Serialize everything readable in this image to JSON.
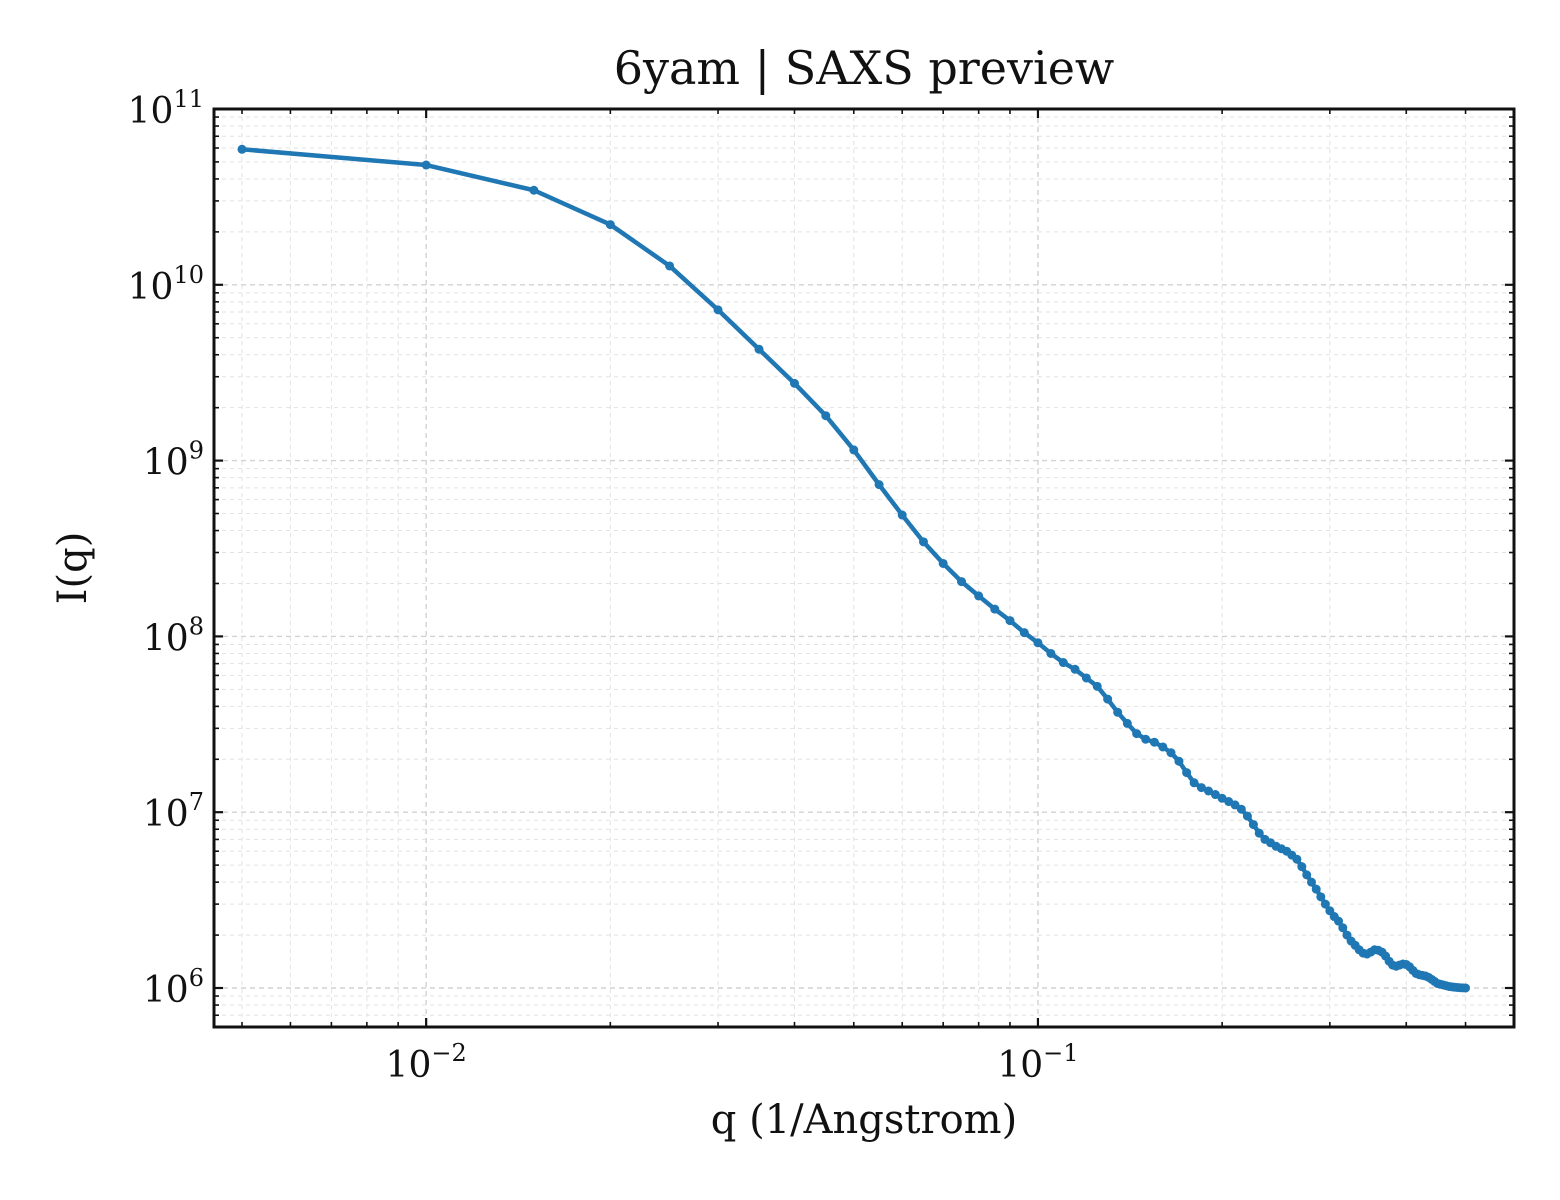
{
  "chart_data": {
    "type": "line",
    "title": "6yam | SAXS preview",
    "xlabel": "q (1/Angstrom)",
    "ylabel": "I(q)",
    "xscale": "log",
    "yscale": "log",
    "xlim": [
      0.0045,
      0.6
    ],
    "ylim": [
      600000,
      100000000000
    ],
    "grid": true,
    "x_ticks": [
      {
        "value": 0.01,
        "base": "10",
        "exp": "−2"
      },
      {
        "value": 0.1,
        "base": "10",
        "exp": "−1"
      }
    ],
    "y_ticks": [
      {
        "value": 1000000,
        "base": "10",
        "exp": "6"
      },
      {
        "value": 10000000,
        "base": "10",
        "exp": "7"
      },
      {
        "value": 100000000,
        "base": "10",
        "exp": "8"
      },
      {
        "value": 1000000000,
        "base": "10",
        "exp": "9"
      },
      {
        "value": 10000000000,
        "base": "10",
        "exp": "10"
      },
      {
        "value": 100000000000,
        "base": "10",
        "exp": "11"
      }
    ],
    "colors": {
      "series": "#1f77b4"
    },
    "series": [
      {
        "x": [
          0.005,
          0.01,
          0.015,
          0.02,
          0.025,
          0.03,
          0.035,
          0.04,
          0.045,
          0.05,
          0.055,
          0.06,
          0.065,
          0.07,
          0.075,
          0.08,
          0.085,
          0.09,
          0.095,
          0.1,
          0.105,
          0.11,
          0.115,
          0.12,
          0.125,
          0.13,
          0.135,
          0.14,
          0.145,
          0.15,
          0.155,
          0.16,
          0.165,
          0.17,
          0.175,
          0.18,
          0.185,
          0.19,
          0.195,
          0.2,
          0.205,
          0.21,
          0.215,
          0.22,
          0.225,
          0.23,
          0.235,
          0.24,
          0.245,
          0.25,
          0.255,
          0.26,
          0.265,
          0.27,
          0.275,
          0.28,
          0.285,
          0.29,
          0.295,
          0.3,
          0.305,
          0.31,
          0.315,
          0.32,
          0.325,
          0.33,
          0.335,
          0.34,
          0.345,
          0.35,
          0.355,
          0.36,
          0.365,
          0.37,
          0.375,
          0.38,
          0.385,
          0.39,
          0.395,
          0.4,
          0.405,
          0.41,
          0.415,
          0.42,
          0.425,
          0.43,
          0.435,
          0.44,
          0.445,
          0.45,
          0.455,
          0.46,
          0.465,
          0.47,
          0.475,
          0.48,
          0.485,
          0.49,
          0.495,
          0.5
        ],
        "values": [
          59000000000,
          48000000000,
          34500000000,
          22000000000,
          12800000000,
          7200000000,
          4300000000,
          2750000000,
          1800000000,
          1150000000,
          730000000,
          490000000,
          345000000,
          260000000,
          205000000,
          170000000,
          143000000,
          123000000,
          105000000,
          92000000,
          80000000,
          71000000,
          65000000,
          58000000,
          52000000,
          44000000,
          37000000,
          32000000,
          28000000,
          26000000,
          25000000,
          23500000,
          21800000,
          19500000,
          16800000,
          14700000,
          13800000,
          13200000,
          12600000,
          12000000,
          11500000,
          11000000,
          10400000,
          9500000,
          8500000,
          7600000,
          7000000,
          6700000,
          6400000,
          6200000,
          6000000,
          5700000,
          5400000,
          4900000,
          4400000,
          4000000,
          3650000,
          3300000,
          3000000,
          2750000,
          2550000,
          2400000,
          2200000,
          2000000,
          1850000,
          1750000,
          1650000,
          1580000,
          1560000,
          1600000,
          1650000,
          1640000,
          1600000,
          1520000,
          1420000,
          1350000,
          1330000,
          1350000,
          1370000,
          1360000,
          1320000,
          1260000,
          1210000,
          1190000,
          1180000,
          1170000,
          1150000,
          1120000,
          1090000,
          1060000,
          1050000,
          1040000,
          1030000,
          1020000,
          1015000,
          1010000,
          1007000,
          1004000,
          1002000,
          1000000
        ]
      }
    ]
  }
}
